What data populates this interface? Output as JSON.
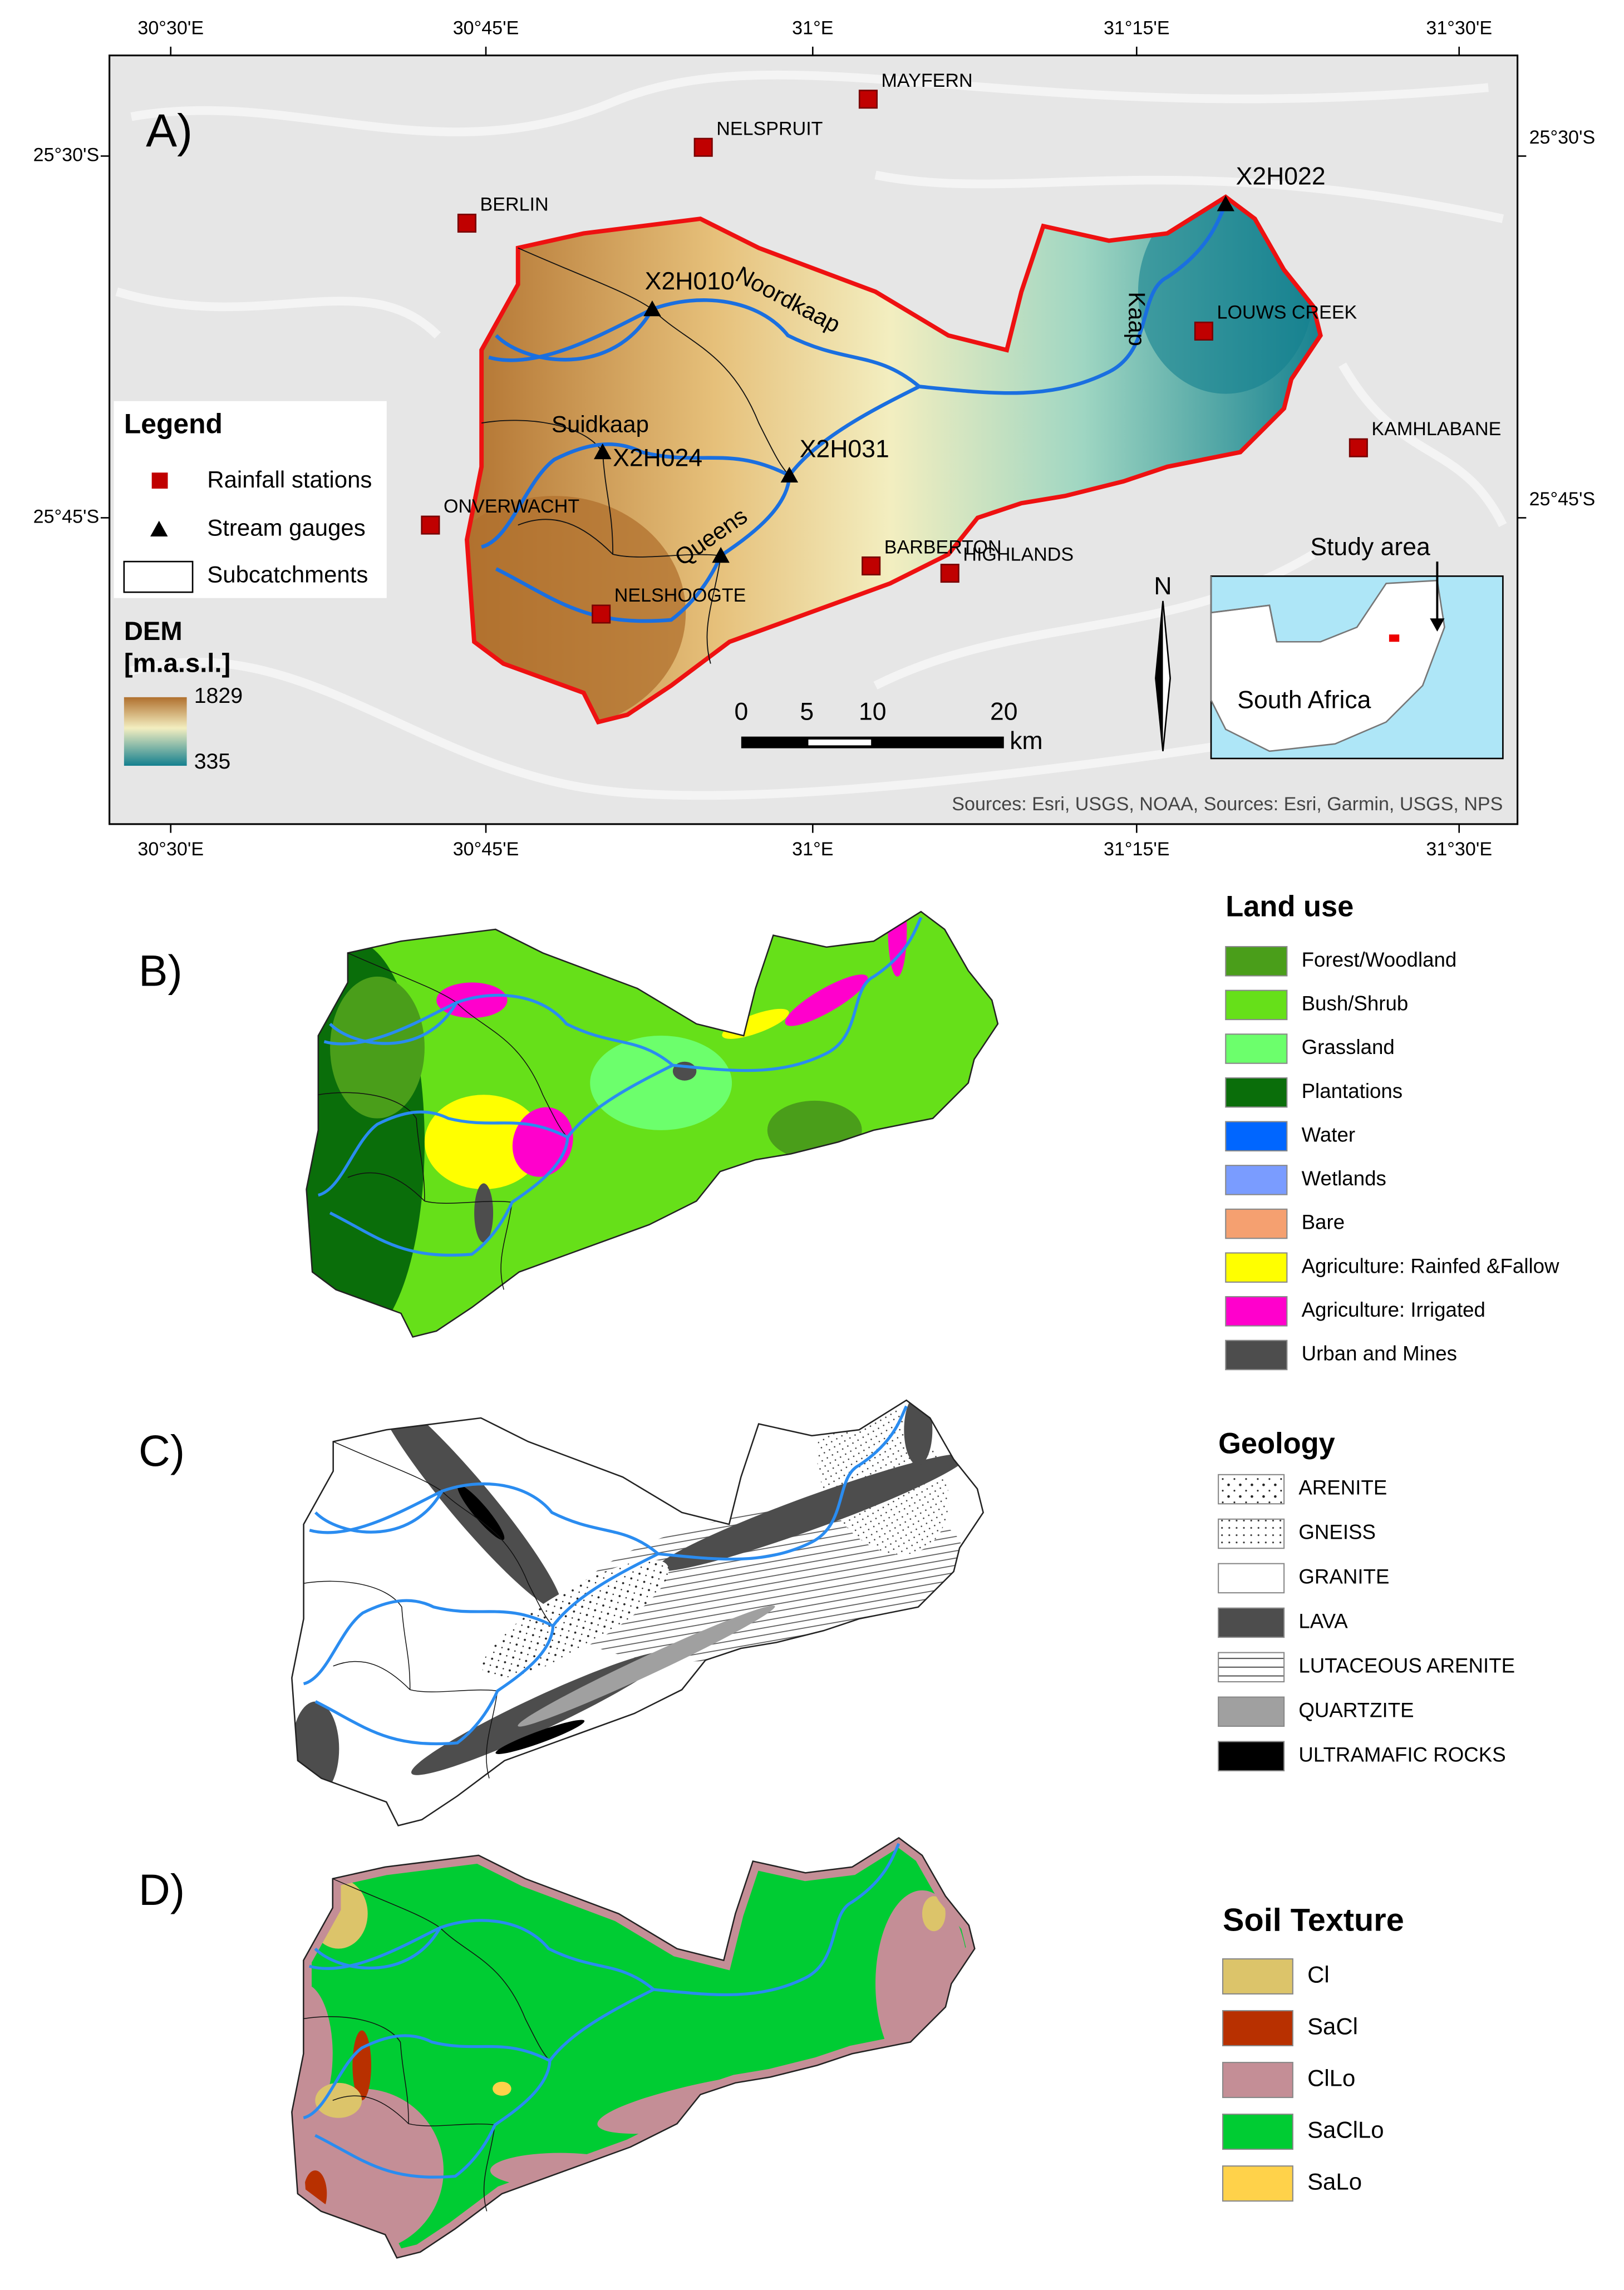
{
  "panel_a": {
    "label": "A)",
    "lon_ticks": [
      "30°30'E",
      "30°45'E",
      "31°E",
      "31°15'E",
      "31°30'E"
    ],
    "lat_ticks": [
      "25°30'S",
      "25°45'S"
    ],
    "stations": [
      "MAYFERN",
      "NELSPRUIT",
      "BERLIN",
      "LOUWS CREEK",
      "KAMHLABANE",
      "ONVERWACHT",
      "BARBERTON",
      "HIGHLANDS",
      "NELSHOOGTE"
    ],
    "gauges": [
      "X2H022",
      "X2H010",
      "X2H024",
      "X2H031"
    ],
    "rivers": [
      "Noordkaap",
      "Kaap",
      "Suidkaap",
      "Queens"
    ],
    "legend": {
      "title": "Legend",
      "items": [
        "Rainfall stations",
        "Stream gauges",
        "Subcatchments"
      ],
      "dem_title": "DEM",
      "dem_unit": "[m.a.s.l.]",
      "dem_max": 1829,
      "dem_min": 335
    },
    "scale": {
      "ticks": [
        0,
        5,
        10,
        20
      ],
      "unit": "km"
    },
    "north": "N",
    "inset": {
      "title": "Study area",
      "country": "South Africa"
    },
    "sources": "Sources: Esri, USGS, NOAA, Sources: Esri, Garmin, USGS, NPS"
  },
  "panel_b": {
    "label": "B)",
    "legend_title": "Land use",
    "classes": [
      {
        "name": "Forest/Woodland",
        "color": "#4a9e1a"
      },
      {
        "name": "Bush/Shrub",
        "color": "#66e019"
      },
      {
        "name": "Grassland",
        "color": "#6cff6c"
      },
      {
        "name": "Plantations",
        "color": "#0a6e0a"
      },
      {
        "name": "Water",
        "color": "#0066ff"
      },
      {
        "name": "Wetlands",
        "color": "#7a9cff"
      },
      {
        "name": "Bare",
        "color": "#f5a070"
      },
      {
        "name": "Agriculture: Rainfed &Fallow",
        "color": "#ffff00"
      },
      {
        "name": "Agriculture: Irrigated",
        "color": "#ff00cc"
      },
      {
        "name": "Urban and Mines",
        "color": "#4d4d4d"
      }
    ]
  },
  "panel_c": {
    "label": "C)",
    "legend_title": "Geology",
    "classes": [
      {
        "name": "ARENITE",
        "color": "#ffffff",
        "pattern": "dots"
      },
      {
        "name": "GNEISS",
        "color": "#ffffff",
        "pattern": "fine"
      },
      {
        "name": "GRANITE",
        "color": "#ffffff"
      },
      {
        "name": "LAVA",
        "color": "#4d4d4d"
      },
      {
        "name": "LUTACEOUS ARENITE",
        "color": "#ffffff",
        "pattern": "hlines"
      },
      {
        "name": "QUARTZITE",
        "color": "#a0a0a0"
      },
      {
        "name": "ULTRAMAFIC ROCKS",
        "color": "#000000"
      }
    ]
  },
  "panel_d": {
    "label": "D)",
    "legend_title": "Soil Texture",
    "classes": [
      {
        "name": "Cl",
        "color": "#dcc46a"
      },
      {
        "name": "SaCl",
        "color": "#b83000"
      },
      {
        "name": "ClLo",
        "color": "#c48e96"
      },
      {
        "name": "SaClLo",
        "color": "#00cc33"
      },
      {
        "name": "SaLo",
        "color": "#ffd24a"
      }
    ]
  }
}
